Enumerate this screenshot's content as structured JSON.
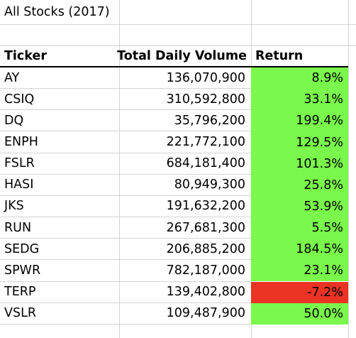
{
  "sheet": {
    "title": "All Stocks (2017)",
    "headers": {
      "ticker": "Ticker",
      "volume": "Total Daily Volume",
      "return": "Return"
    },
    "rows": [
      {
        "ticker": "AY",
        "volume": "136,070,900",
        "return": "8.9%",
        "status": "positive"
      },
      {
        "ticker": "CSIQ",
        "volume": "310,592,800",
        "return": "33.1%",
        "status": "positive"
      },
      {
        "ticker": "DQ",
        "volume": "35,796,200",
        "return": "199.4%",
        "status": "positive"
      },
      {
        "ticker": "ENPH",
        "volume": "221,772,100",
        "return": "129.5%",
        "status": "positive"
      },
      {
        "ticker": "FSLR",
        "volume": "684,181,400",
        "return": "101.3%",
        "status": "positive"
      },
      {
        "ticker": "HASI",
        "volume": "80,949,300",
        "return": "25.8%",
        "status": "positive"
      },
      {
        "ticker": "JKS",
        "volume": "191,632,200",
        "return": "53.9%",
        "status": "positive"
      },
      {
        "ticker": "RUN",
        "volume": "267,681,300",
        "return": "5.5%",
        "status": "positive"
      },
      {
        "ticker": "SEDG",
        "volume": "206,885,200",
        "return": "184.5%",
        "status": "positive"
      },
      {
        "ticker": "SPWR",
        "volume": "782,187,000",
        "return": "23.1%",
        "status": "positive"
      },
      {
        "ticker": "TERP",
        "volume": "139,402,800",
        "return": "-7.2%",
        "status": "negative"
      },
      {
        "ticker": "VSLR",
        "volume": "109,487,900",
        "return": "50.0%",
        "status": "positive"
      }
    ]
  },
  "colors": {
    "positive": "#7af84c",
    "negative": "#eb3323",
    "gridline": "#d4d4d4",
    "header_border": "#000000"
  }
}
